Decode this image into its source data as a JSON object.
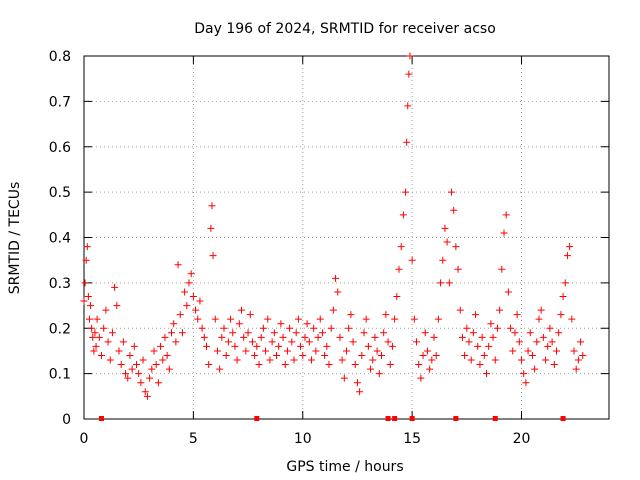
{
  "chart_data": {
    "type": "scatter",
    "title": "Day 196 of 2024, SRMTID for receiver acso",
    "xlabel": "GPS time / hours",
    "ylabel": "SRMTID / TECUs",
    "xlim": [
      0,
      24
    ],
    "ylim": [
      0,
      0.8
    ],
    "xticks": [
      0,
      5,
      10,
      15,
      20
    ],
    "xtick_labels": [
      "0",
      "5",
      "10",
      "15",
      "20"
    ],
    "yticks": [
      0,
      0.1,
      0.2,
      0.3,
      0.4,
      0.5,
      0.6,
      0.7,
      0.8
    ],
    "ytick_labels": [
      "0",
      "0.1",
      "0.2",
      "0.3",
      "0.4",
      "0.5",
      "0.6",
      "0.7",
      "0.8"
    ],
    "grid": true,
    "marker": "plus",
    "marker_color": "#ff0000",
    "baseline_markers_x": [
      0.8,
      7.9,
      13.9,
      14.2,
      15.0,
      17.0,
      18.8,
      21.9
    ],
    "series": [
      {
        "name": "SRMTID",
        "x": [
          0.0,
          0.05,
          0.1,
          0.15,
          0.2,
          0.25,
          0.3,
          0.35,
          0.4,
          0.45,
          0.5,
          0.55,
          0.6,
          0.7,
          0.8,
          0.9,
          1.0,
          1.1,
          1.2,
          1.3,
          1.4,
          1.5,
          1.6,
          1.7,
          1.8,
          1.9,
          2.0,
          2.1,
          2.2,
          2.3,
          2.4,
          2.5,
          2.6,
          2.7,
          2.8,
          2.9,
          3.0,
          3.1,
          3.2,
          3.3,
          3.4,
          3.5,
          3.6,
          3.7,
          3.8,
          3.9,
          4.0,
          4.1,
          4.2,
          4.3,
          4.4,
          4.5,
          4.6,
          4.7,
          4.8,
          4.9,
          5.0,
          5.1,
          5.2,
          5.3,
          5.4,
          5.5,
          5.6,
          5.7,
          5.8,
          5.85,
          5.9,
          6.0,
          6.1,
          6.2,
          6.3,
          6.4,
          6.5,
          6.6,
          6.7,
          6.8,
          6.9,
          7.0,
          7.1,
          7.2,
          7.3,
          7.4,
          7.5,
          7.6,
          7.7,
          7.8,
          7.9,
          8.0,
          8.1,
          8.2,
          8.3,
          8.4,
          8.5,
          8.6,
          8.7,
          8.8,
          8.9,
          9.0,
          9.1,
          9.2,
          9.3,
          9.4,
          9.5,
          9.6,
          9.7,
          9.8,
          9.9,
          10.0,
          10.1,
          10.2,
          10.3,
          10.4,
          10.5,
          10.6,
          10.7,
          10.8,
          10.9,
          11.0,
          11.1,
          11.2,
          11.3,
          11.4,
          11.5,
          11.6,
          11.7,
          11.8,
          11.9,
          12.0,
          12.1,
          12.2,
          12.3,
          12.4,
          12.5,
          12.6,
          12.7,
          12.8,
          12.9,
          13.0,
          13.1,
          13.2,
          13.3,
          13.4,
          13.5,
          13.6,
          13.7,
          13.8,
          13.9,
          14.0,
          14.1,
          14.2,
          14.3,
          14.4,
          14.5,
          14.6,
          14.7,
          14.75,
          14.8,
          14.85,
          14.9,
          15.0,
          15.1,
          15.2,
          15.3,
          15.4,
          15.5,
          15.6,
          15.7,
          15.8,
          15.9,
          16.0,
          16.1,
          16.2,
          16.3,
          16.4,
          16.5,
          16.6,
          16.7,
          16.8,
          16.9,
          17.0,
          17.1,
          17.2,
          17.3,
          17.4,
          17.5,
          17.6,
          17.7,
          17.8,
          17.9,
          18.0,
          18.1,
          18.2,
          18.3,
          18.4,
          18.5,
          18.6,
          18.7,
          18.8,
          18.9,
          19.0,
          19.1,
          19.2,
          19.3,
          19.4,
          19.5,
          19.6,
          19.7,
          19.8,
          19.9,
          20.0,
          20.1,
          20.2,
          20.3,
          20.4,
          20.5,
          20.6,
          20.7,
          20.8,
          20.9,
          21.0,
          21.1,
          21.2,
          21.3,
          21.4,
          21.5,
          21.6,
          21.7,
          21.8,
          21.9,
          22.0,
          22.1,
          22.2,
          22.3,
          22.4,
          22.5,
          22.6,
          22.7,
          22.8
        ],
        "y": [
          0.26,
          0.3,
          0.35,
          0.38,
          0.27,
          0.22,
          0.25,
          0.2,
          0.18,
          0.15,
          0.19,
          0.16,
          0.22,
          0.18,
          0.14,
          0.2,
          0.24,
          0.17,
          0.13,
          0.19,
          0.29,
          0.25,
          0.15,
          0.12,
          0.17,
          0.1,
          0.09,
          0.14,
          0.11,
          0.16,
          0.12,
          0.1,
          0.08,
          0.13,
          0.06,
          0.05,
          0.09,
          0.11,
          0.15,
          0.12,
          0.08,
          0.16,
          0.13,
          0.18,
          0.14,
          0.11,
          0.19,
          0.21,
          0.17,
          0.34,
          0.23,
          0.19,
          0.28,
          0.25,
          0.3,
          0.32,
          0.27,
          0.24,
          0.22,
          0.26,
          0.2,
          0.18,
          0.16,
          0.12,
          0.42,
          0.47,
          0.36,
          0.22,
          0.15,
          0.11,
          0.18,
          0.2,
          0.14,
          0.17,
          0.22,
          0.19,
          0.16,
          0.13,
          0.21,
          0.24,
          0.18,
          0.15,
          0.19,
          0.23,
          0.17,
          0.14,
          0.16,
          0.12,
          0.18,
          0.2,
          0.15,
          0.22,
          0.13,
          0.17,
          0.19,
          0.14,
          0.16,
          0.21,
          0.18,
          0.12,
          0.15,
          0.2,
          0.17,
          0.13,
          0.19,
          0.22,
          0.16,
          0.14,
          0.18,
          0.21,
          0.17,
          0.13,
          0.2,
          0.15,
          0.18,
          0.22,
          0.19,
          0.14,
          0.16,
          0.12,
          0.2,
          0.24,
          0.31,
          0.28,
          0.18,
          0.13,
          0.09,
          0.15,
          0.2,
          0.23,
          0.17,
          0.12,
          0.08,
          0.06,
          0.14,
          0.19,
          0.22,
          0.16,
          0.11,
          0.13,
          0.18,
          0.15,
          0.1,
          0.14,
          0.19,
          0.23,
          0.17,
          0.12,
          0.16,
          0.22,
          0.27,
          0.33,
          0.38,
          0.45,
          0.5,
          0.61,
          0.69,
          0.76,
          0.8,
          0.35,
          0.22,
          0.17,
          0.12,
          0.09,
          0.14,
          0.19,
          0.15,
          0.11,
          0.13,
          0.18,
          0.14,
          0.22,
          0.3,
          0.35,
          0.42,
          0.39,
          0.3,
          0.5,
          0.46,
          0.38,
          0.33,
          0.24,
          0.18,
          0.14,
          0.2,
          0.17,
          0.13,
          0.19,
          0.23,
          0.16,
          0.12,
          0.18,
          0.14,
          0.1,
          0.16,
          0.21,
          0.18,
          0.13,
          0.2,
          0.24,
          0.33,
          0.41,
          0.45,
          0.28,
          0.2,
          0.15,
          0.19,
          0.23,
          0.17,
          0.13,
          0.1,
          0.08,
          0.15,
          0.19,
          0.14,
          0.11,
          0.17,
          0.22,
          0.24,
          0.18,
          0.13,
          0.16,
          0.2,
          0.17,
          0.12,
          0.15,
          0.19,
          0.23,
          0.27,
          0.3,
          0.36,
          0.38,
          0.22,
          0.15,
          0.11,
          0.13,
          0.17,
          0.14
        ]
      }
    ]
  }
}
